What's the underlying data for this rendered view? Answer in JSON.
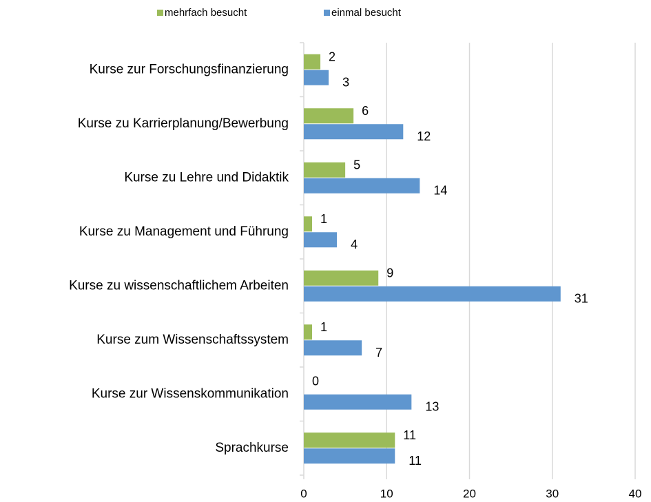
{
  "chart_data": {
    "type": "bar",
    "orientation": "horizontal",
    "categories": [
      "Kurse zur Forschungsfinanzierung",
      "Kurse zu Karrierplanung/Bewerbung",
      "Kurse zu Lehre und Didaktik",
      "Kurse zu Management und Führung",
      "Kurse zu wissenschaftlichem Arbeiten",
      "Kurse zum Wissenschaftssystem",
      "Kurse zur Wissenskommunikation",
      "Sprachkurse"
    ],
    "series": [
      {
        "name": "mehrfach besucht",
        "color": "#9bbb59",
        "values": [
          2,
          6,
          5,
          1,
          9,
          1,
          0,
          11
        ]
      },
      {
        "name": "einmal besucht",
        "color": "#5f96cf",
        "values": [
          3,
          12,
          14,
          4,
          31,
          7,
          13,
          11
        ]
      }
    ],
    "xlim": [
      0,
      40
    ],
    "xticks": [
      0,
      10,
      20,
      30,
      40
    ],
    "grid": true,
    "legend": "top"
  }
}
